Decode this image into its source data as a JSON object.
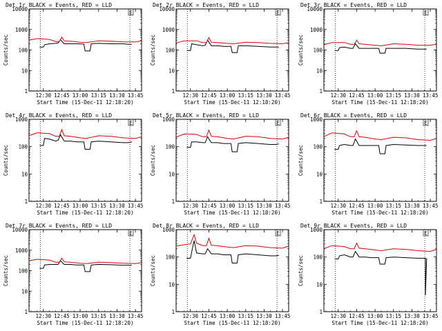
{
  "colors": {
    "events": "#000000",
    "lld": "#dd0000",
    "axes": "#000000",
    "background": "#ffffff"
  },
  "chart_data": [
    {
      "type": "line",
      "title": "Det 1r BLACK = Events, RED = LLD",
      "xlabel": "Start Time (15-Dec-11 12:18:20)",
      "ylabel": "Counts/sec",
      "x_ticks": [
        "12:30",
        "12:45",
        "13:00",
        "13:15",
        "13:30",
        "13:45"
      ],
      "y_ticks": [
        "1",
        "10",
        "100",
        "1000",
        "10000"
      ],
      "ylim": [
        1,
        10000
      ],
      "yscale": "log",
      "grid": false,
      "marker": "E",
      "series": [
        {
          "name": "Events",
          "x": [
            "12:27",
            "12:30",
            "12:31",
            "12:35",
            "12:40",
            "12:42",
            "12:44",
            "12:47",
            "12:52",
            "12:57",
            "13:03",
            "13:04",
            "13:08",
            "13:09",
            "13:15",
            "13:25",
            "13:35",
            "13:39",
            "13:42"
          ],
          "values": [
            140,
            140,
            180,
            200,
            210,
            220,
            320,
            200,
            200,
            200,
            195,
            90,
            90,
            200,
            210,
            200,
            200,
            190,
            190
          ]
        },
        {
          "name": "LLD",
          "x": [
            "12:18",
            "12:25",
            "12:35",
            "12:40",
            "12:43",
            "12:45",
            "12:47",
            "12:52",
            "13:00",
            "13:05",
            "13:15",
            "13:25",
            "13:35",
            "13:45",
            "13:50"
          ],
          "values": [
            300,
            360,
            330,
            260,
            260,
            420,
            280,
            270,
            240,
            230,
            280,
            270,
            250,
            250,
            280
          ]
        }
      ]
    },
    {
      "type": "line",
      "title": "Det 2r BLACK = Events, RED = LLD",
      "xlabel": "Start Time (15-Dec-11 12:18:20)",
      "ylabel": "Counts/sec",
      "x_ticks": [
        "12:30",
        "12:45",
        "13:00",
        "13:15",
        "13:30",
        "13:45"
      ],
      "y_ticks": [
        "1",
        "10",
        "100",
        "1000",
        "10000"
      ],
      "ylim": [
        1,
        10000
      ],
      "yscale": "log",
      "grid": false,
      "marker": "E",
      "series": [
        {
          "name": "Events",
          "x": [
            "12:27",
            "12:30",
            "12:31",
            "12:35",
            "12:40",
            "12:42",
            "12:44",
            "12:47",
            "12:52",
            "12:57",
            "13:03",
            "13:04",
            "13:08",
            "13:09",
            "13:15",
            "13:25",
            "13:35",
            "13:39",
            "13:42"
          ],
          "values": [
            95,
            95,
            200,
            180,
            160,
            170,
            300,
            160,
            160,
            150,
            150,
            75,
            75,
            160,
            160,
            150,
            140,
            140,
            140
          ]
        },
        {
          "name": "LLD",
          "x": [
            "12:18",
            "12:25",
            "12:35",
            "12:40",
            "12:43",
            "12:45",
            "12:47",
            "12:52",
            "13:00",
            "13:05",
            "13:15",
            "13:25",
            "13:35",
            "13:45",
            "13:50"
          ],
          "values": [
            220,
            280,
            280,
            230,
            230,
            400,
            240,
            230,
            210,
            200,
            240,
            230,
            210,
            200,
            230
          ]
        }
      ]
    },
    {
      "type": "line",
      "title": "Det 3r BLACK = Events, RED = LLD",
      "xlabel": "Start Time (15-Dec-11 12:18:20)",
      "ylabel": "Counts/sec",
      "x_ticks": [
        "12:30",
        "12:45",
        "13:00",
        "13:15",
        "13:30",
        "13:45"
      ],
      "y_ticks": [
        "1",
        "10",
        "100",
        "1000",
        "10000"
      ],
      "ylim": [
        1,
        10000
      ],
      "yscale": "log",
      "grid": false,
      "marker": "E",
      "series": [
        {
          "name": "Events",
          "x": [
            "12:27",
            "12:30",
            "12:31",
            "12:35",
            "12:40",
            "12:42",
            "12:44",
            "12:47",
            "12:52",
            "12:57",
            "13:03",
            "13:04",
            "13:08",
            "13:09",
            "13:15",
            "13:25",
            "13:35",
            "13:39",
            "13:42"
          ],
          "values": [
            95,
            95,
            130,
            140,
            120,
            120,
            200,
            120,
            120,
            120,
            120,
            70,
            70,
            120,
            120,
            120,
            110,
            110,
            110
          ]
        },
        {
          "name": "LLD",
          "x": [
            "12:18",
            "12:25",
            "12:35",
            "12:40",
            "12:43",
            "12:45",
            "12:47",
            "12:52",
            "13:00",
            "13:05",
            "13:15",
            "13:25",
            "13:35",
            "13:45",
            "13:50"
          ],
          "values": [
            180,
            230,
            230,
            190,
            190,
            300,
            200,
            190,
            170,
            160,
            200,
            190,
            170,
            170,
            190
          ]
        }
      ]
    },
    {
      "type": "line",
      "title": "Det 4r BLACK = Events, RED = LLD",
      "xlabel": "Start Time (15-Dec-11 12:18:20)",
      "ylabel": "Counts/sec",
      "x_ticks": [
        "12:30",
        "12:45",
        "13:00",
        "13:15",
        "13:30",
        "13:45"
      ],
      "y_ticks": [
        "1",
        "10",
        "100",
        "1000"
      ],
      "ylim": [
        1,
        1000
      ],
      "yscale": "log",
      "grid": false,
      "marker": "E",
      "series": [
        {
          "name": "Events",
          "x": [
            "12:27",
            "12:30",
            "12:31",
            "12:35",
            "12:40",
            "12:42",
            "12:44",
            "12:47",
            "12:52",
            "12:57",
            "13:03",
            "13:04",
            "13:08",
            "13:09",
            "13:15",
            "13:25",
            "13:35",
            "13:39",
            "13:42"
          ],
          "values": [
            110,
            110,
            200,
            190,
            160,
            170,
            270,
            160,
            160,
            150,
            150,
            80,
            80,
            150,
            160,
            150,
            140,
            140,
            150
          ]
        },
        {
          "name": "LLD",
          "x": [
            "12:18",
            "12:25",
            "12:35",
            "12:40",
            "12:43",
            "12:45",
            "12:47",
            "12:52",
            "13:00",
            "13:05",
            "13:15",
            "13:25",
            "13:35",
            "13:45",
            "13:50"
          ],
          "values": [
            250,
            320,
            300,
            240,
            240,
            420,
            250,
            240,
            210,
            200,
            250,
            240,
            210,
            200,
            230
          ]
        }
      ]
    },
    {
      "type": "line",
      "title": "Det 5r BLACK = Events, RED = LLD",
      "xlabel": "Start Time (15-Dec-11 12:18:20)",
      "ylabel": "Counts/sec",
      "x_ticks": [
        "12:30",
        "12:45",
        "13:00",
        "13:15",
        "13:30",
        "13:45"
      ],
      "y_ticks": [
        "1",
        "10",
        "100",
        "1000"
      ],
      "ylim": [
        1,
        1000
      ],
      "yscale": "log",
      "grid": false,
      "marker": "E",
      "series": [
        {
          "name": "Events",
          "x": [
            "12:27",
            "12:30",
            "12:31",
            "12:35",
            "12:40",
            "12:42",
            "12:44",
            "12:47",
            "12:52",
            "12:57",
            "13:03",
            "13:04",
            "13:08",
            "13:09",
            "13:15",
            "13:25",
            "13:35",
            "13:39",
            "13:42"
          ],
          "values": [
            95,
            95,
            150,
            150,
            140,
            140,
            230,
            140,
            140,
            130,
            130,
            65,
            65,
            130,
            140,
            130,
            120,
            120,
            125
          ]
        },
        {
          "name": "LLD",
          "x": [
            "12:18",
            "12:25",
            "12:35",
            "12:40",
            "12:43",
            "12:45",
            "12:47",
            "12:52",
            "13:00",
            "13:05",
            "13:15",
            "13:25",
            "13:35",
            "13:45",
            "13:50"
          ],
          "values": [
            220,
            290,
            280,
            230,
            230,
            400,
            240,
            230,
            200,
            190,
            240,
            230,
            200,
            190,
            220
          ]
        }
      ]
    },
    {
      "type": "line",
      "title": "Det 6r BLACK = Events, RED = LLD",
      "xlabel": "Start Time (15-Dec-11 12:18:20)",
      "ylabel": "Counts/sec",
      "x_ticks": [
        "12:30",
        "12:45",
        "13:00",
        "13:15",
        "13:30",
        "13:45"
      ],
      "y_ticks": [
        "1",
        "10",
        "100",
        "1000"
      ],
      "ylim": [
        1,
        1000
      ],
      "yscale": "log",
      "grid": false,
      "marker": "E",
      "series": [
        {
          "name": "Events",
          "x": [
            "12:27",
            "12:30",
            "12:31",
            "12:35",
            "12:40",
            "12:42",
            "12:44",
            "12:47",
            "12:52",
            "12:57",
            "13:03",
            "13:04",
            "13:08",
            "13:09",
            "13:15",
            "13:25",
            "13:35",
            "13:39",
            "13:42"
          ],
          "values": [
            80,
            80,
            110,
            120,
            110,
            110,
            190,
            110,
            110,
            110,
            110,
            55,
            55,
            110,
            120,
            115,
            110,
            110,
            110
          ]
        },
        {
          "name": "LLD",
          "x": [
            "12:18",
            "12:25",
            "12:35",
            "12:40",
            "12:43",
            "12:45",
            "12:47",
            "12:52",
            "13:00",
            "13:05",
            "13:15",
            "13:25",
            "13:35",
            "13:45",
            "13:50"
          ],
          "values": [
            230,
            320,
            290,
            230,
            230,
            380,
            230,
            220,
            190,
            180,
            220,
            210,
            180,
            170,
            200
          ]
        }
      ]
    },
    {
      "type": "line",
      "title": "Det 7r BLACK = Events, RED = LLD",
      "xlabel": "Start Time (15-Dec-11 12:18:20)",
      "ylabel": "Counts/sec",
      "x_ticks": [
        "12:30",
        "12:45",
        "13:00",
        "13:15",
        "13:30",
        "13:45"
      ],
      "y_ticks": [
        "1",
        "10",
        "100",
        "1000",
        "10000"
      ],
      "ylim": [
        1,
        10000
      ],
      "yscale": "log",
      "grid": false,
      "marker": "E",
      "series": [
        {
          "name": "Events",
          "x": [
            "12:27",
            "12:30",
            "12:31",
            "12:35",
            "12:40",
            "12:42",
            "12:44",
            "12:47",
            "12:52",
            "12:57",
            "13:03",
            "13:04",
            "13:08",
            "13:09",
            "13:15",
            "13:25",
            "13:35",
            "13:39",
            "13:42"
          ],
          "values": [
            130,
            130,
            190,
            200,
            200,
            200,
            310,
            200,
            200,
            190,
            190,
            90,
            90,
            190,
            200,
            195,
            185,
            185,
            185
          ]
        },
        {
          "name": "LLD",
          "x": [
            "12:18",
            "12:25",
            "12:35",
            "12:40",
            "12:43",
            "12:45",
            "12:47",
            "12:52",
            "13:00",
            "13:05",
            "13:15",
            "13:25",
            "13:35",
            "13:45",
            "13:50"
          ],
          "values": [
            300,
            360,
            330,
            260,
            260,
            410,
            270,
            260,
            230,
            220,
            260,
            250,
            230,
            220,
            250
          ]
        }
      ]
    },
    {
      "type": "line",
      "title": "Det 8r BLACK = Events, RED = LLD",
      "xlabel": "Start Time (15-Dec-11 12:18:20)",
      "ylabel": "Counts/sec",
      "x_ticks": [
        "12:30",
        "12:45",
        "13:00",
        "13:15",
        "13:30",
        "13:45"
      ],
      "y_ticks": [
        "1",
        "10",
        "100",
        "1000"
      ],
      "ylim": [
        1,
        1000
      ],
      "yscale": "log",
      "grid": false,
      "marker": "E",
      "series": [
        {
          "name": "Events",
          "x": [
            "12:27",
            "12:30",
            "12:31",
            "12:33",
            "12:35",
            "12:40",
            "12:42",
            "12:44",
            "12:47",
            "12:52",
            "12:57",
            "13:03",
            "13:04",
            "13:08",
            "13:09",
            "13:15",
            "13:25",
            "13:35",
            "13:39",
            "13:42"
          ],
          "values": [
            90,
            90,
            150,
            400,
            140,
            130,
            130,
            200,
            130,
            130,
            120,
            120,
            60,
            60,
            120,
            130,
            120,
            110,
            110,
            115
          ]
        },
        {
          "name": "LLD",
          "x": [
            "12:18",
            "12:25",
            "12:30",
            "12:33",
            "12:35",
            "12:40",
            "12:43",
            "12:45",
            "12:47",
            "12:52",
            "13:00",
            "13:05",
            "13:15",
            "13:25",
            "13:35",
            "13:45",
            "13:50"
          ],
          "values": [
            250,
            280,
            300,
            650,
            320,
            260,
            260,
            480,
            270,
            260,
            230,
            220,
            260,
            250,
            220,
            210,
            250
          ]
        }
      ]
    },
    {
      "type": "line",
      "title": "Det 9r BLACK = Events, RED = LLD",
      "xlabel": "Start Time (15-Dec-11 12:18:20)",
      "ylabel": "Counts/sec",
      "x_ticks": [
        "12:30",
        "12:45",
        "13:00",
        "13:15",
        "13:30",
        "13:45"
      ],
      "y_ticks": [
        "1",
        "10",
        "100",
        "1000"
      ],
      "ylim": [
        1,
        1000
      ],
      "yscale": "log",
      "grid": false,
      "marker": "E",
      "series": [
        {
          "name": "Events",
          "x": [
            "12:27",
            "12:30",
            "12:31",
            "12:35",
            "12:40",
            "12:42",
            "12:44",
            "12:47",
            "12:52",
            "12:57",
            "13:03",
            "13:04",
            "13:08",
            "13:09",
            "13:15",
            "13:25",
            "13:35",
            "13:39",
            "13:41",
            "13:41",
            "13:42"
          ],
          "values": [
            85,
            85,
            110,
            120,
            100,
            100,
            160,
            100,
            100,
            95,
            95,
            55,
            55,
            95,
            100,
            95,
            90,
            90,
            90,
            4,
            90
          ]
        },
        {
          "name": "LLD",
          "x": [
            "12:18",
            "12:25",
            "12:35",
            "12:40",
            "12:43",
            "12:45",
            "12:47",
            "12:52",
            "13:00",
            "13:05",
            "13:15",
            "13:25",
            "13:35",
            "13:45",
            "13:50"
          ],
          "values": [
            200,
            260,
            240,
            200,
            200,
            320,
            210,
            200,
            180,
            170,
            200,
            190,
            170,
            160,
            190
          ]
        }
      ]
    }
  ]
}
